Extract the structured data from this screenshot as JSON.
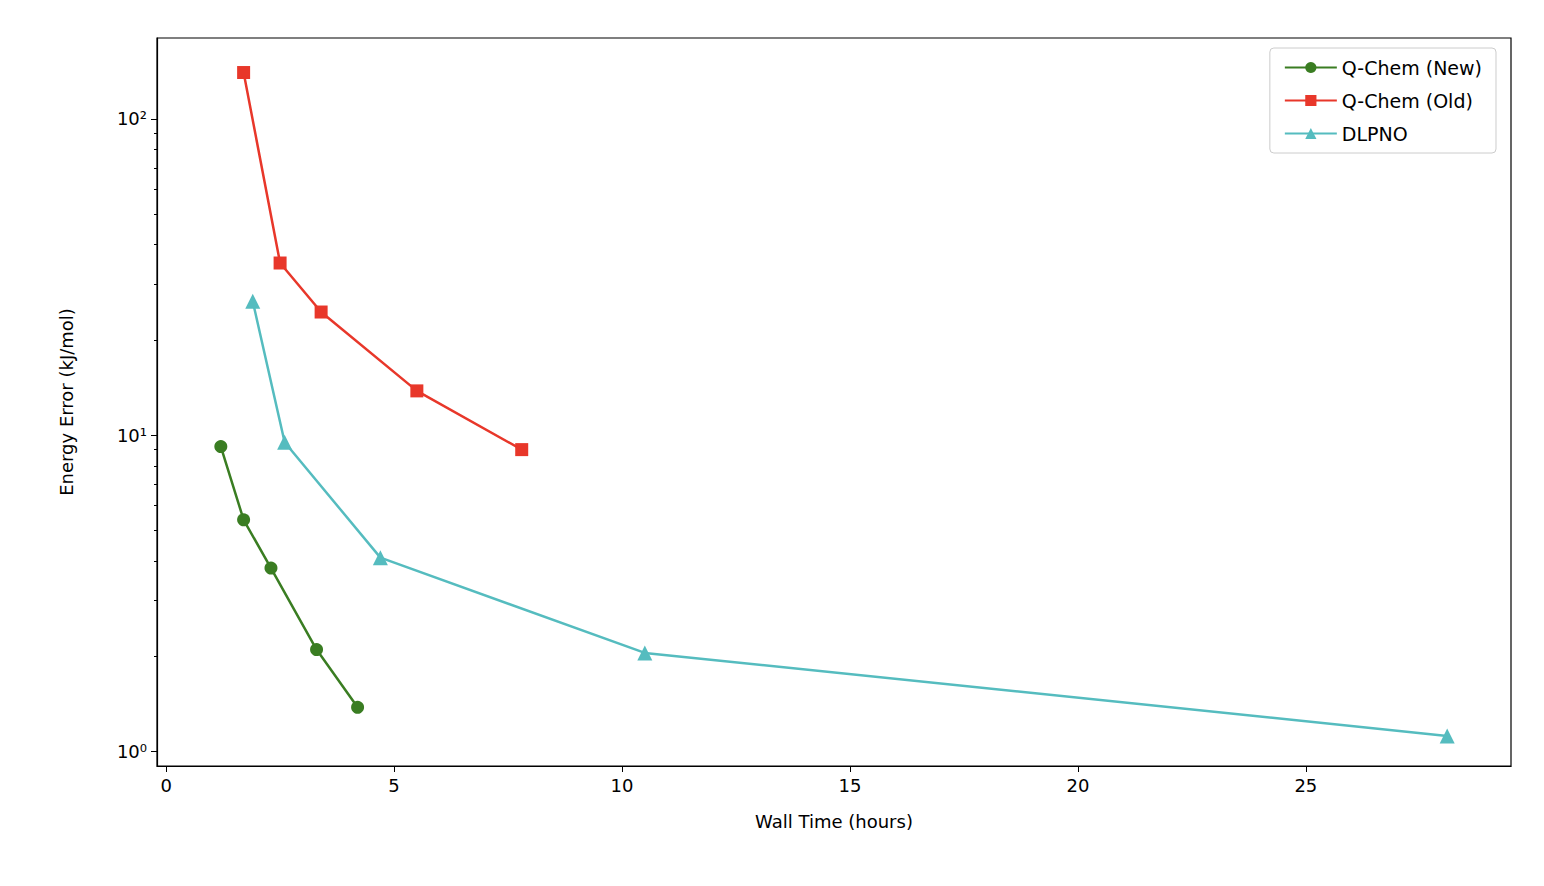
{
  "chart_data": {
    "type": "line",
    "x_label": "Wall Time (hours)",
    "y_label": "Energy Error (kJ/mol)",
    "log": "y",
    "grid": false,
    "legend": "upper right",
    "xlim": [
      -0.2,
      29.5
    ],
    "xticks": [
      0,
      5,
      10,
      15,
      20,
      25
    ],
    "ylim": [
      0.9,
      180
    ],
    "yticks": [
      {
        "value": 1,
        "label": "10⁰"
      },
      {
        "value": 10,
        "label": "10¹"
      },
      {
        "value": 100,
        "label": "10²"
      }
    ],
    "series": [
      {
        "name": "Q-Chem (New)",
        "color": "#3a7d22",
        "marker": "circle",
        "x": [
          1.2,
          1.7,
          2.3,
          3.3,
          4.2
        ],
        "values": [
          9.2,
          5.4,
          3.8,
          2.1,
          1.38
        ]
      },
      {
        "name": "Q-Chem (Old)",
        "color": "#e8372a",
        "marker": "square",
        "x": [
          1.7,
          2.5,
          3.4,
          5.5,
          7.8
        ],
        "values": [
          140,
          35,
          24.5,
          13.8,
          9.0
        ]
      },
      {
        "name": "DLPNO",
        "color": "#55bcbf",
        "marker": "triangle",
        "x": [
          1.9,
          2.6,
          4.7,
          10.5,
          28.1
        ],
        "values": [
          26.5,
          9.5,
          4.1,
          2.05,
          1.12
        ]
      }
    ]
  }
}
